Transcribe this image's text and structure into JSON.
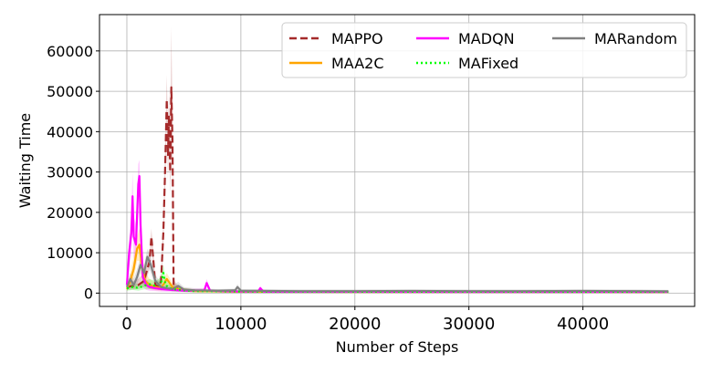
{
  "chart_data": {
    "type": "line",
    "xlabel": "Number of Steps",
    "ylabel": "Waiting Time",
    "xlim": [
      -2400,
      49800
    ],
    "ylim": [
      -3300,
      69000
    ],
    "x_ticks": [
      0,
      10000,
      20000,
      30000,
      40000
    ],
    "x_tick_labels": [
      "0",
      "10000",
      "20000",
      "30000",
      "40000"
    ],
    "y_ticks": [
      0,
      10000,
      20000,
      30000,
      40000,
      50000,
      60000
    ],
    "y_tick_labels": [
      "0",
      "10000",
      "20000",
      "30000",
      "40000",
      "50000",
      "60000"
    ],
    "grid": true,
    "legend_position": "top-right",
    "legend_columns": 3,
    "series": [
      {
        "name": "MAPPO",
        "color": "#a52a2a",
        "dash": "dashed",
        "x": [
          0,
          1000,
          1500,
          2000,
          2150,
          2300,
          2500,
          2800,
          3000,
          3200,
          3350,
          3500,
          3600,
          3700,
          3800,
          3900,
          4000,
          4100,
          4300,
          4500,
          5000,
          6000,
          10000,
          20000,
          30000,
          40000,
          47500
        ],
        "y": [
          1500,
          2000,
          3000,
          8000,
          14000,
          9000,
          2000,
          1500,
          3000,
          15000,
          30000,
          48000,
          34000,
          44000,
          30000,
          51000,
          38000,
          2000,
          1500,
          1000,
          700,
          500,
          400,
          350,
          400,
          350,
          300
        ],
        "band_upper": [
          2500,
          3500,
          5000,
          10000,
          16000,
          11000,
          3500,
          3000,
          5000,
          18000,
          35000,
          54000,
          42000,
          50000,
          36000,
          66000,
          45000,
          3500,
          2500,
          1800,
          1200,
          900,
          700,
          600,
          650,
          600,
          500
        ],
        "band_lower": [
          800,
          1000,
          1500,
          6000,
          12000,
          7000,
          1000,
          800,
          1500,
          12000,
          25000,
          42000,
          28000,
          38000,
          24000,
          36000,
          31000,
          1000,
          800,
          500,
          300,
          200,
          150,
          100,
          150,
          120,
          100
        ]
      },
      {
        "name": "MAA2C",
        "color": "#ffa500",
        "dash": "solid",
        "x": [
          0,
          300,
          600,
          900,
          1100,
          1300,
          1600,
          2000,
          2500,
          3000,
          3500,
          4000,
          4500,
          5000,
          6000,
          10000,
          20000,
          30000,
          40000,
          47500
        ],
        "y": [
          1000,
          3000,
          6000,
          11000,
          12000,
          7000,
          3000,
          2000,
          1500,
          1200,
          3500,
          1500,
          1000,
          800,
          500,
          350,
          300,
          320,
          300,
          280
        ],
        "band_upper": [
          1800,
          5000,
          9000,
          14000,
          16000,
          10000,
          5000,
          3500,
          2500,
          2200,
          5000,
          2500,
          1800,
          1300,
          900,
          600,
          500,
          550,
          500,
          450
        ],
        "band_lower": [
          500,
          1500,
          3500,
          8000,
          8000,
          4000,
          1500,
          1000,
          700,
          600,
          2000,
          700,
          500,
          400,
          250,
          150,
          100,
          120,
          100,
          100
        ]
      },
      {
        "name": "MADQN",
        "color": "#ff00ff",
        "dash": "solid",
        "x": [
          0,
          200,
          400,
          500,
          600,
          800,
          1000,
          1100,
          1200,
          1400,
          1700,
          2000,
          2500,
          3000,
          4000,
          5000,
          6800,
          7000,
          7300,
          8000,
          10000,
          11500,
          11700,
          12000,
          20000,
          30000,
          40000,
          47500
        ],
        "y": [
          2000,
          10000,
          15000,
          24000,
          14000,
          12000,
          27000,
          29000,
          17000,
          4000,
          2000,
          1500,
          1200,
          1000,
          800,
          600,
          700,
          2500,
          600,
          500,
          400,
          400,
          1200,
          350,
          350,
          300,
          320,
          300
        ],
        "band_upper": [
          3500,
          14000,
          20000,
          30000,
          19000,
          17000,
          32000,
          33000,
          22000,
          7000,
          3500,
          2500,
          2000,
          1800,
          1400,
          1000,
          1200,
          3500,
          1000,
          800,
          700,
          700,
          1800,
          600,
          600,
          500,
          550,
          500
        ],
        "band_lower": [
          800,
          6000,
          10000,
          18000,
          9000,
          7000,
          22000,
          25000,
          12000,
          1500,
          800,
          600,
          500,
          400,
          300,
          250,
          300,
          1500,
          250,
          200,
          150,
          150,
          600,
          120,
          120,
          100,
          120,
          100
        ]
      },
      {
        "name": "MAFixed",
        "color": "#00ff00",
        "dash": "dotted",
        "x": [
          0,
          500,
          1000,
          1500,
          2000,
          2500,
          3000,
          3200,
          3400,
          3600,
          4000,
          5000,
          6000,
          10000,
          20000,
          30000,
          40000,
          47500
        ],
        "y": [
          1200,
          1500,
          1300,
          1800,
          2200,
          1800,
          2500,
          5000,
          2000,
          1500,
          1000,
          700,
          500,
          400,
          350,
          330,
          320,
          300
        ],
        "band_upper": [
          2000,
          2500,
          2200,
          3000,
          3500,
          3000,
          4000,
          7000,
          3500,
          2500,
          1800,
          1200,
          900,
          700,
          600,
          550,
          500,
          480
        ],
        "band_lower": [
          600,
          800,
          600,
          900,
          1000,
          900,
          1200,
          3000,
          900,
          700,
          400,
          300,
          200,
          150,
          120,
          110,
          100,
          100
        ]
      },
      {
        "name": "MARandom",
        "color": "#808080",
        "dash": "solid",
        "x": [
          0,
          300,
          600,
          900,
          1200,
          1500,
          1800,
          2100,
          2500,
          3000,
          3500,
          4000,
          4500,
          5000,
          6000,
          8000,
          9500,
          9700,
          10000,
          15000,
          20000,
          25000,
          30000,
          35000,
          40000,
          45000,
          47500
        ],
        "y": [
          1500,
          3500,
          2000,
          4000,
          7000,
          5000,
          9000,
          7000,
          3000,
          1500,
          1200,
          1000,
          1800,
          900,
          700,
          600,
          700,
          1500,
          600,
          500,
          500,
          550,
          500,
          500,
          550,
          500,
          450
        ],
        "band_upper": [
          2500,
          5000,
          3500,
          6000,
          9000,
          7000,
          11000,
          9000,
          4500,
          2500,
          2000,
          1800,
          2800,
          1500,
          1200,
          1000,
          1100,
          2200,
          1000,
          900,
          900,
          950,
          900,
          900,
          950,
          900,
          800
        ],
        "band_lower": [
          800,
          2000,
          1000,
          2000,
          5000,
          3000,
          7000,
          5000,
          1500,
          700,
          600,
          500,
          900,
          400,
          300,
          250,
          300,
          800,
          250,
          200,
          200,
          250,
          200,
          200,
          250,
          200,
          180
        ]
      }
    ]
  }
}
